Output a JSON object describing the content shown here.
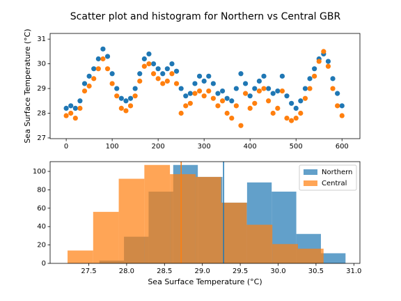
{
  "title": "Scatter plot and histogram for Northern vs Central GBR",
  "chart_data": [
    {
      "type": "scatter",
      "ylabel": "Sea Surface Temperature (°C)",
      "x": [
        0,
        10,
        20,
        30,
        40,
        50,
        60,
        70,
        80,
        90,
        100,
        110,
        120,
        130,
        140,
        150,
        160,
        170,
        180,
        190,
        200,
        210,
        220,
        230,
        240,
        250,
        260,
        270,
        280,
        290,
        300,
        310,
        320,
        330,
        340,
        350,
        360,
        370,
        380,
        390,
        400,
        410,
        420,
        430,
        440,
        450,
        460,
        470,
        480,
        490,
        500,
        510,
        520,
        530,
        540,
        550,
        560,
        570,
        580,
        590,
        600
      ],
      "series": [
        {
          "color": "#1f77b4",
          "values": [
            28.2,
            28.3,
            28.2,
            28.5,
            29.2,
            29.5,
            29.8,
            30.2,
            30.6,
            30.3,
            29.6,
            29.0,
            28.6,
            28.5,
            28.6,
            29.0,
            29.6,
            30.2,
            30.4,
            30.0,
            29.8,
            29.6,
            29.8,
            30.0,
            29.7,
            29.0,
            28.7,
            28.8,
            29.2,
            29.5,
            29.3,
            29.5,
            29.2,
            28.8,
            28.9,
            28.6,
            28.5,
            29.0,
            29.6,
            29.2,
            28.7,
            29.0,
            29.3,
            29.5,
            29.0,
            28.8,
            28.9,
            29.5,
            28.7,
            28.4,
            28.2,
            28.5,
            29.0,
            29.4,
            29.8,
            30.2,
            30.4,
            30.1,
            29.4,
            28.8,
            28.3
          ]
        },
        {
          "color": "#ff7f0e",
          "values": [
            27.9,
            28.0,
            27.8,
            28.2,
            28.9,
            29.1,
            29.4,
            29.8,
            30.2,
            29.8,
            29.2,
            28.7,
            28.2,
            28.1,
            28.3,
            28.7,
            29.3,
            29.9,
            30.0,
            29.6,
            29.4,
            29.2,
            29.3,
            29.6,
            29.2,
            28.0,
            28.3,
            28.4,
            28.8,
            28.9,
            28.7,
            28.9,
            28.6,
            28.3,
            28.5,
            28.0,
            27.8,
            28.3,
            27.5,
            28.8,
            28.2,
            28.4,
            28.9,
            29.0,
            28.5,
            28.0,
            28.2,
            28.9,
            27.8,
            27.7,
            27.8,
            28.0,
            28.6,
            29.0,
            29.5,
            30.1,
            30.5,
            29.9,
            29.0,
            28.3,
            27.9
          ]
        }
      ],
      "xlim": [
        -35,
        639
      ],
      "ylim": [
        26.97,
        31.23
      ],
      "xticks": [
        0,
        100,
        200,
        300,
        400,
        500,
        600
      ],
      "yticks": [
        27,
        28,
        29,
        30,
        31
      ]
    },
    {
      "type": "histogram",
      "xlabel": "Sea Surface Temperature (°C)",
      "series": [
        {
          "name": "Northern",
          "color": "#1f77b4",
          "bins": [
            27.64,
            27.965,
            28.29,
            28.615,
            28.94,
            29.265,
            29.59,
            29.915,
            30.24,
            30.565,
            30.89
          ],
          "values": [
            3,
            29,
            78,
            107,
            94,
            66,
            88,
            78,
            32,
            11
          ]
        },
        {
          "name": "Central",
          "color": "#ff7f0e",
          "bins": [
            27.22,
            27.558,
            27.896,
            28.234,
            28.572,
            28.91,
            29.248,
            29.586,
            29.924,
            30.262,
            30.6
          ],
          "values": [
            14,
            56,
            92,
            107,
            97,
            94,
            66,
            42,
            21,
            16
          ]
        }
      ],
      "vlines": [
        {
          "value": 29.28,
          "color": "#1f77b4"
        },
        {
          "value": 28.72,
          "color": "#ff7f0e"
        }
      ],
      "legend": "upper right",
      "xlim": [
        26.99,
        31.08
      ],
      "ylim": [
        0,
        110.6
      ],
      "xticks": [
        {
          "value": 27.5,
          "label": "27.5"
        },
        {
          "value": 28.0,
          "label": "28.0"
        },
        {
          "value": 28.5,
          "label": "28.5"
        },
        {
          "value": 29.0,
          "label": "29.0"
        },
        {
          "value": 29.5,
          "label": "29.5"
        },
        {
          "value": 30.0,
          "label": "30.0"
        },
        {
          "value": 30.5,
          "label": "30.5"
        },
        {
          "value": 31.0,
          "label": "31.0"
        }
      ],
      "yticks": [
        0,
        20,
        40,
        60,
        80,
        100
      ]
    }
  ]
}
